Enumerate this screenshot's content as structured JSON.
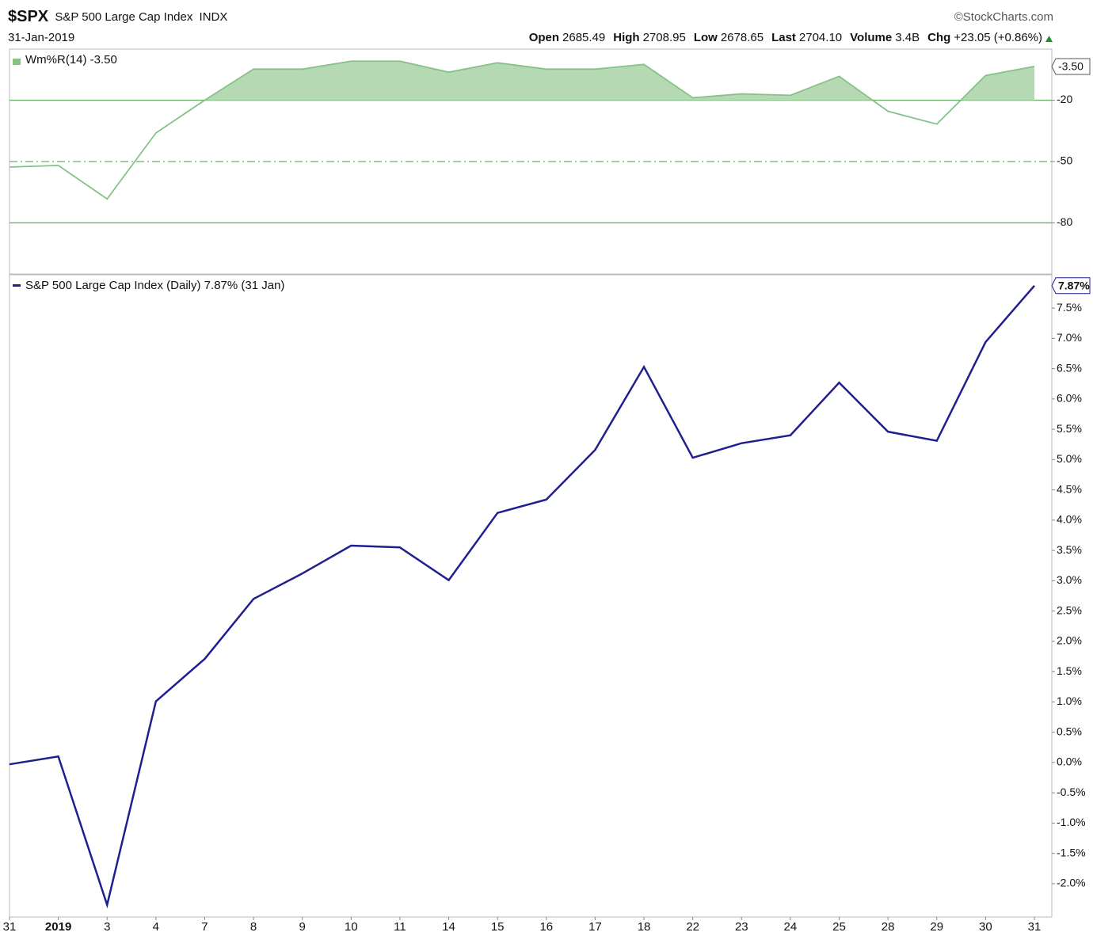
{
  "header": {
    "symbol": "$SPX",
    "name": "S&P 500 Large Cap Index",
    "exchange": "INDX",
    "source": "©StockCharts.com",
    "date": "31-Jan-2019",
    "stats": [
      {
        "label": "Open",
        "value": "2685.49"
      },
      {
        "label": "High",
        "value": "2708.95"
      },
      {
        "label": "Low",
        "value": "2678.65"
      },
      {
        "label": "Last",
        "value": "2704.10"
      },
      {
        "label": "Volume",
        "value": "3.4B"
      },
      {
        "label": "Chg",
        "value": "+23.05 (+0.86%)"
      }
    ]
  },
  "chart_data": [
    {
      "type": "line",
      "series": [
        {
          "name": "Wm%R(14) -3.50",
          "color": "#86c286",
          "values": [
            -52.7,
            -51.9,
            -68.3,
            -36.0,
            -20.0,
            -4.8,
            -4.8,
            -0.9,
            -0.9,
            -6.3,
            -1.7,
            -4.8,
            -4.8,
            -2.5,
            -18.8,
            -16.9,
            -17.6,
            -8.3,
            -25.4,
            -31.7,
            -7.9,
            -3.5
          ],
          "value_labels": [
            null,
            null,
            null,
            null,
            null,
            null,
            null,
            null,
            null,
            null,
            null,
            null,
            null,
            null,
            null,
            null,
            null,
            null,
            null,
            null,
            null,
            "-3.50"
          ]
        }
      ],
      "ylim": [
        -105,
        5
      ],
      "yticks": [
        -20,
        -50,
        -80
      ],
      "yticks_style": [
        "solid",
        "dashdot",
        "solid"
      ],
      "grid": true,
      "fill_above": -20,
      "fill_color": "#b5dab3",
      "grid_color": "#6aae6a"
    },
    {
      "type": "line",
      "categories": [
        "31",
        "2019",
        "3",
        "4",
        "7",
        "8",
        "9",
        "10",
        "11",
        "14",
        "15",
        "16",
        "17",
        "18",
        "22",
        "23",
        "24",
        "25",
        "28",
        "29",
        "30",
        "31"
      ],
      "bold_category_indices": [
        1
      ],
      "series": [
        {
          "name": "S&P 500 Large Cap Index (Daily) 7.87% (31 Jan)",
          "color": "#1f1f8f",
          "values": [
            -0.03,
            0.1,
            -2.35,
            1.01,
            1.71,
            2.7,
            3.12,
            3.58,
            3.55,
            3.01,
            4.12,
            4.34,
            5.16,
            6.53,
            5.03,
            5.27,
            5.4,
            6.27,
            5.46,
            5.31,
            6.94,
            7.87
          ],
          "value_labels": [
            null,
            null,
            null,
            null,
            null,
            null,
            null,
            null,
            null,
            null,
            null,
            null,
            null,
            null,
            null,
            null,
            null,
            null,
            null,
            null,
            null,
            "7.87%"
          ]
        }
      ],
      "ylim": [
        -2.55,
        8.05
      ],
      "grid": false,
      "yticks": [
        {
          "value": 7.5,
          "label": "7.5%"
        },
        {
          "value": 7.0,
          "label": "7.0%"
        },
        {
          "value": 6.5,
          "label": "6.5%"
        },
        {
          "value": 6.0,
          "label": "6.0%"
        },
        {
          "value": 5.5,
          "label": "5.5%"
        },
        {
          "value": 5.0,
          "label": "5.0%"
        },
        {
          "value": 4.5,
          "label": "4.5%"
        },
        {
          "value": 4.0,
          "label": "4.0%"
        },
        {
          "value": 3.5,
          "label": "3.5%"
        },
        {
          "value": 3.0,
          "label": "3.0%"
        },
        {
          "value": 2.5,
          "label": "2.5%"
        },
        {
          "value": 2.0,
          "label": "2.0%"
        },
        {
          "value": 1.5,
          "label": "1.5%"
        },
        {
          "value": 1.0,
          "label": "1.0%"
        },
        {
          "value": 0.5,
          "label": "0.5%"
        },
        {
          "value": 0.0,
          "label": "0.0%"
        },
        {
          "value": -0.5,
          "label": "-0.5%"
        },
        {
          "value": -1.0,
          "label": "-1.0%"
        },
        {
          "value": -1.5,
          "label": "-1.5%"
        },
        {
          "value": -2.0,
          "label": "-2.0%"
        }
      ]
    }
  ]
}
